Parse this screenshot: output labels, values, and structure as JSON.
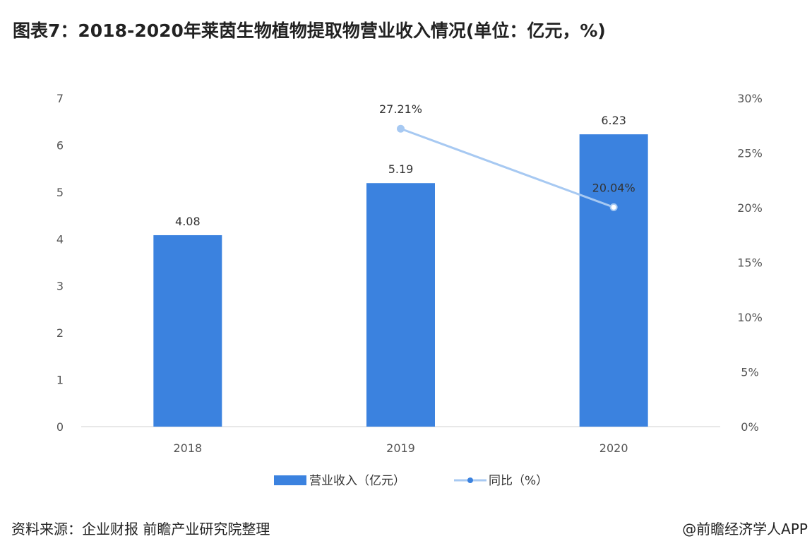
{
  "title": "图表7：2018-2020年莱茵生物植物提取物营业收入情况(单位：亿元，%)",
  "source": "资料来源：企业财报 前瞻产业研究院整理",
  "credit": "@前瞻经济学人APP",
  "colors": {
    "bar": "#3b82df",
    "line": "#a7c9f2"
  },
  "chart_data": {
    "type": "bar+line",
    "categories": [
      "2018",
      "2019",
      "2020"
    ],
    "series": [
      {
        "name": "营业收入（亿元）",
        "type": "bar",
        "axis": "left",
        "values": [
          4.08,
          5.19,
          6.23
        ],
        "labels": [
          "4.08",
          "5.19",
          "6.23"
        ]
      },
      {
        "name": "同比（%）",
        "type": "line",
        "axis": "right",
        "values": [
          null,
          27.21,
          20.04
        ],
        "labels": [
          "",
          "27.21%",
          "20.04%"
        ]
      }
    ],
    "left_axis": {
      "ylim": [
        0,
        7
      ],
      "ticks": [
        "0",
        "1",
        "2",
        "3",
        "4",
        "5",
        "6",
        "7"
      ]
    },
    "right_axis": {
      "ylim": [
        0,
        30
      ],
      "ticks": [
        "0%",
        "5%",
        "10%",
        "15%",
        "20%",
        "25%",
        "30%"
      ]
    },
    "grid": false,
    "legend": "bottom"
  }
}
